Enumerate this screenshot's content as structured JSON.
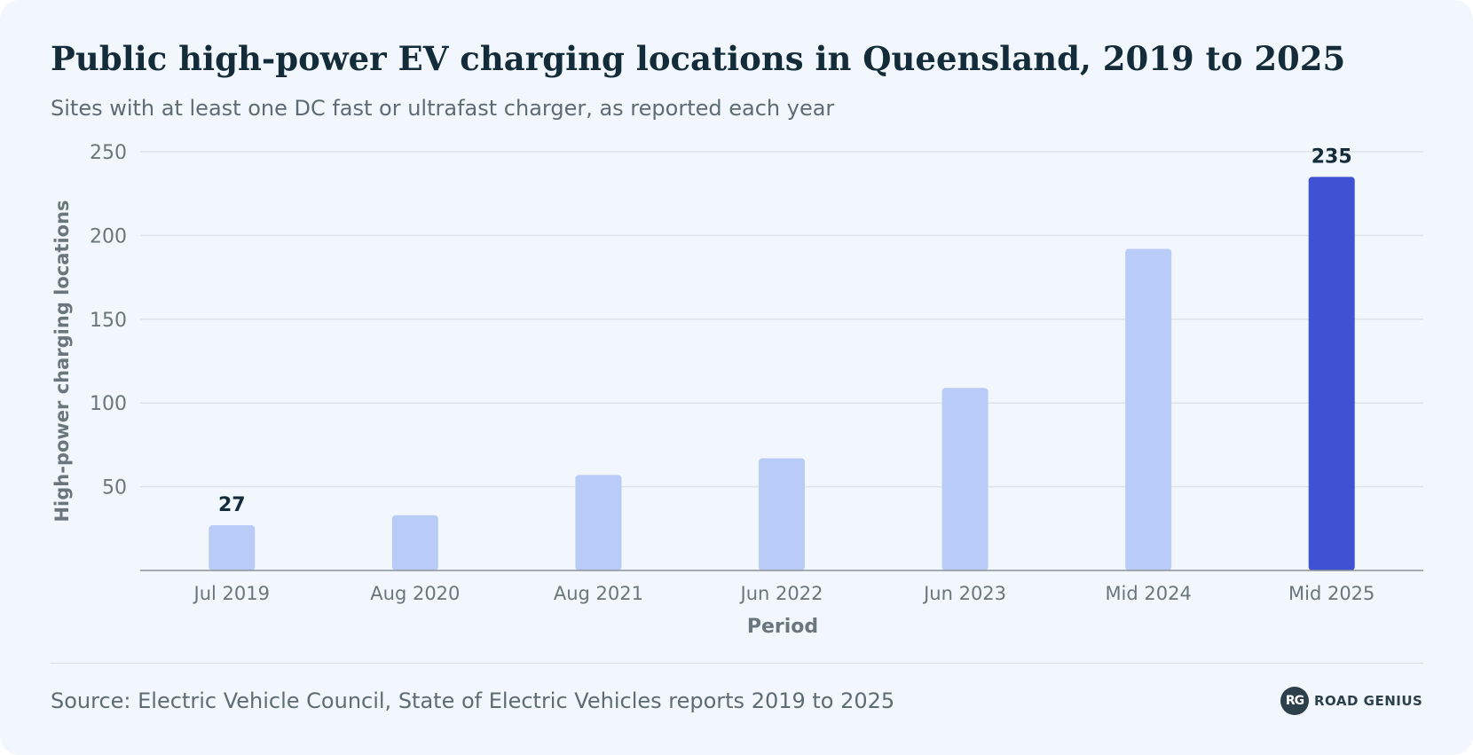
{
  "header": {
    "title": "Public high-power EV charging locations in Queensland, 2019 to 2025",
    "subtitle": "Sites with at least one DC fast or ultrafast charger, as reported each year"
  },
  "footer": {
    "source": "Source: Electric Vehicle Council, State of Electric Vehicles reports 2019 to 2025",
    "logo_mark": "RG",
    "logo_word": "ROAD GENIUS"
  },
  "colors": {
    "background": "#f1f7fd",
    "bar": "#b9cbf7",
    "bar_highlight": "#3f52d4",
    "gridline": "#dde3e8",
    "axis": "#8a939a",
    "tick_text": "#6b757d",
    "label_text": "#142c3a"
  },
  "chart_data": {
    "type": "bar",
    "title": "Public high-power EV charging locations in Queensland, 2019 to 2025",
    "subtitle": "Sites with at least one DC fast or ultrafast charger, as reported each year",
    "xlabel": "Period",
    "ylabel": "High-power charging locations",
    "categories": [
      "Jul 2019",
      "Aug 2020",
      "Aug 2021",
      "Jun 2022",
      "Jun 2023",
      "Mid 2024",
      "Mid 2025"
    ],
    "values": [
      27,
      33,
      57,
      67,
      109,
      192,
      235
    ],
    "ylim": [
      0,
      250
    ],
    "yticks": [
      50,
      100,
      150,
      200,
      250
    ],
    "data_labels": [
      {
        "category": "Jul 2019",
        "text": "27"
      },
      {
        "category": "Mid 2025",
        "text": "235"
      }
    ],
    "highlight_category": "Mid 2025",
    "grid": true,
    "legend": "none"
  }
}
